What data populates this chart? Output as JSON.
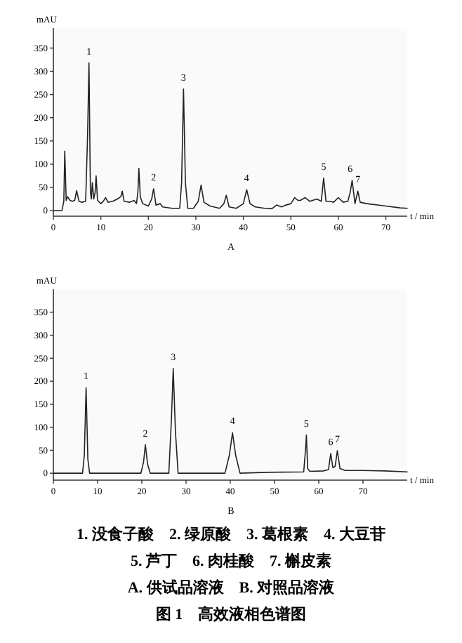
{
  "chart_data": [
    {
      "type": "line",
      "title": "A",
      "xlabel": "t / min",
      "ylabel": "mAU",
      "xlim": [
        0,
        74.5
      ],
      "ylim": [
        -12,
        393
      ],
      "xticks": [
        0,
        10,
        20,
        30,
        40,
        50,
        60,
        70
      ],
      "yticks": [
        0,
        50,
        100,
        150,
        200,
        250,
        300,
        350
      ],
      "x": [
        0,
        1.8,
        2.2,
        2.4,
        2.7,
        3.0,
        3.5,
        4.0,
        4.5,
        4.9,
        5.4,
        6.0,
        6.8,
        7.2,
        7.5,
        7.8,
        8.0,
        8.2,
        8.5,
        8.8,
        9.0,
        9.3,
        10.0,
        10.5,
        11.0,
        11.5,
        12.5,
        13.5,
        14.2,
        14.5,
        14.9,
        16.0,
        17.0,
        17.5,
        17.8,
        18.0,
        18.3,
        18.8,
        20.0,
        20.7,
        21.1,
        21.6,
        22.5,
        23.0,
        25.0,
        26.6,
        27.0,
        27.4,
        27.8,
        28.3,
        29.5,
        30.5,
        31.1,
        31.7,
        33.0,
        35.0,
        35.9,
        36.4,
        37.0,
        38.5,
        40.0,
        40.7,
        41.4,
        42.5,
        44.5,
        46.0,
        47.0,
        48.0,
        49.0,
        50.0,
        50.8,
        51.5,
        52.0,
        53.0,
        54.0,
        55.5,
        56.4,
        56.9,
        57.4,
        58.2,
        59.0,
        60.0,
        61.0,
        62.0,
        62.5,
        62.9,
        63.5,
        64.1,
        64.6,
        66.0,
        70.0,
        73.0,
        74.5
      ],
      "values": [
        0,
        0,
        20,
        128,
        22,
        30,
        22,
        20,
        22,
        43,
        20,
        18,
        20,
        160,
        318,
        40,
        25,
        60,
        25,
        40,
        75,
        22,
        15,
        20,
        28,
        18,
        20,
        25,
        30,
        42,
        20,
        18,
        22,
        15,
        40,
        91,
        30,
        15,
        10,
        25,
        47,
        12,
        15,
        8,
        5,
        5,
        60,
        262,
        60,
        5,
        5,
        20,
        55,
        18,
        10,
        5,
        15,
        33,
        8,
        5,
        15,
        45,
        15,
        8,
        5,
        4,
        12,
        8,
        12,
        15,
        28,
        22,
        22,
        28,
        20,
        25,
        20,
        70,
        20,
        20,
        18,
        28,
        18,
        20,
        40,
        65,
        15,
        42,
        18,
        15,
        10,
        6,
        5
      ],
      "color": "#222222",
      "annotations": [
        {
          "text": "1",
          "x": 7.5,
          "y": 318
        },
        {
          "text": "2",
          "x": 21.1,
          "y": 47
        },
        {
          "text": "3",
          "x": 27.4,
          "y": 262
        },
        {
          "text": "4",
          "x": 40.7,
          "y": 45
        },
        {
          "text": "5",
          "x": 56.9,
          "y": 70
        },
        {
          "text": "6",
          "x": 62.5,
          "y": 65
        },
        {
          "text": "7",
          "x": 64.1,
          "y": 42
        }
      ]
    },
    {
      "type": "line",
      "title": "B",
      "xlabel": "t / min",
      "ylabel": "mAU",
      "xlim": [
        0,
        80
      ],
      "ylim": [
        -15,
        400
      ],
      "xticks": [
        0,
        10,
        20,
        30,
        40,
        50,
        60,
        70
      ],
      "yticks": [
        0,
        50,
        100,
        150,
        200,
        250,
        300,
        350
      ],
      "x": [
        0,
        6.6,
        7.0,
        7.4,
        7.8,
        8.2,
        19.8,
        20.4,
        20.8,
        21.3,
        21.9,
        26.1,
        26.7,
        27.1,
        27.6,
        28.2,
        38.8,
        39.8,
        40.5,
        41.2,
        42.2,
        48.0,
        56.6,
        57.0,
        57.2,
        57.5,
        58.0,
        61.0,
        62.2,
        62.7,
        63.2,
        63.7,
        64.2,
        64.8,
        66.0,
        70.0,
        75.0,
        80.0
      ],
      "values": [
        0,
        0,
        40,
        186,
        30,
        0,
        0,
        25,
        62,
        20,
        0,
        0,
        120,
        228,
        90,
        0,
        0,
        40,
        88,
        40,
        0,
        2,
        3,
        50,
        83,
        10,
        4,
        5,
        8,
        43,
        12,
        15,
        49,
        10,
        6,
        6,
        5,
        3
      ],
      "color": "#222222",
      "annotations": [
        {
          "text": "1",
          "x": 7.4,
          "y": 186
        },
        {
          "text": "2",
          "x": 20.8,
          "y": 62
        },
        {
          "text": "3",
          "x": 27.1,
          "y": 228
        },
        {
          "text": "4",
          "x": 40.5,
          "y": 88
        },
        {
          "text": "5",
          "x": 57.2,
          "y": 83
        },
        {
          "text": "6",
          "x": 62.7,
          "y": 43
        },
        {
          "text": "7",
          "x": 64.2,
          "y": 49
        },
        "1. 没食子酸　2. 绿原酸　3. 葛根素　4. 大豆苷",
        "5. 芦丁　6. 肉桂酸　7. 槲皮素",
        "A. 供试品溶液　B. 对照品溶液",
        "图 1　高效液相色谱图"
      ]
    }
  ]
}
